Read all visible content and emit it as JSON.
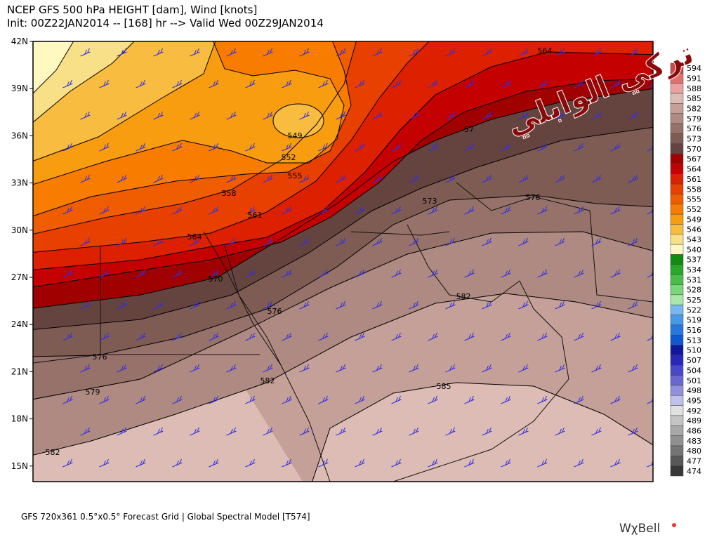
{
  "header": {
    "line1": "NCEP GFS 500 hPa HEIGHT [dam], Wind [knots]",
    "line2": "Init: 00Z22JAN2014 -- [168] hr --> Valid Wed 00Z29JAN2014"
  },
  "lat_labels": [
    "42N",
    "39N",
    "36N",
    "33N",
    "30N",
    "27N",
    "24N",
    "21N",
    "18N",
    "15N"
  ],
  "contour_labels": [
    "564",
    "549",
    "552",
    "555",
    "558",
    "561",
    "564",
    "570",
    "57",
    "573",
    "576",
    "576",
    "576",
    "579",
    "582",
    "582",
    "582",
    "585"
  ],
  "colorbar": [
    {
      "level": 594,
      "color": "#c84a4a"
    },
    {
      "level": 591,
      "color": "#e07070"
    },
    {
      "level": 588,
      "color": "#eca0a0"
    },
    {
      "level": 585,
      "color": "#dcbcb4"
    },
    {
      "level": 582,
      "color": "#c4a098"
    },
    {
      "level": 579,
      "color": "#ae8a82"
    },
    {
      "level": 576,
      "color": "#96726a"
    },
    {
      "level": 573,
      "color": "#7e5c54"
    },
    {
      "level": 570,
      "color": "#654440"
    },
    {
      "level": 567,
      "color": "#a00000"
    },
    {
      "level": 564,
      "color": "#c40000"
    },
    {
      "level": 561,
      "color": "#dc2000"
    },
    {
      "level": 558,
      "color": "#e84000"
    },
    {
      "level": 555,
      "color": "#f05c00"
    },
    {
      "level": 552,
      "color": "#f87c00"
    },
    {
      "level": 549,
      "color": "#f89c10"
    },
    {
      "level": 546,
      "color": "#f8bc40"
    },
    {
      "level": 543,
      "color": "#f8e088"
    },
    {
      "level": 540,
      "color": "#fff8c0"
    },
    {
      "level": 537,
      "color": "#108c10"
    },
    {
      "level": 534,
      "color": "#28a828"
    },
    {
      "level": 531,
      "color": "#48c048"
    },
    {
      "level": 528,
      "color": "#78d878"
    },
    {
      "level": 525,
      "color": "#a8e8a8"
    },
    {
      "level": 522,
      "color": "#78b8f0"
    },
    {
      "level": 519,
      "color": "#4898e8"
    },
    {
      "level": 516,
      "color": "#2878e0"
    },
    {
      "level": 513,
      "color": "#1058d0"
    },
    {
      "level": 510,
      "color": "#1018a0"
    },
    {
      "level": 507,
      "color": "#2828b8"
    },
    {
      "level": 504,
      "color": "#4848c8"
    },
    {
      "level": 501,
      "color": "#6868d0"
    },
    {
      "level": 498,
      "color": "#9090dc"
    },
    {
      "level": 495,
      "color": "#c0c0ec"
    },
    {
      "level": 492,
      "color": "#e0e0e0"
    },
    {
      "level": 489,
      "color": "#c4c4c4"
    },
    {
      "level": 486,
      "color": "#a8a8a8"
    },
    {
      "level": 483,
      "color": "#909090"
    },
    {
      "level": 480,
      "color": "#747474"
    },
    {
      "level": 477,
      "color": "#585858"
    },
    {
      "level": 474,
      "color": "#383838"
    }
  ],
  "footer": "GFS 720x361 0.5°x0.5° Forecast Grid | Global Spectral Model [T574]",
  "logo": "WχBell",
  "watermark": "تركي الوابلي"
}
